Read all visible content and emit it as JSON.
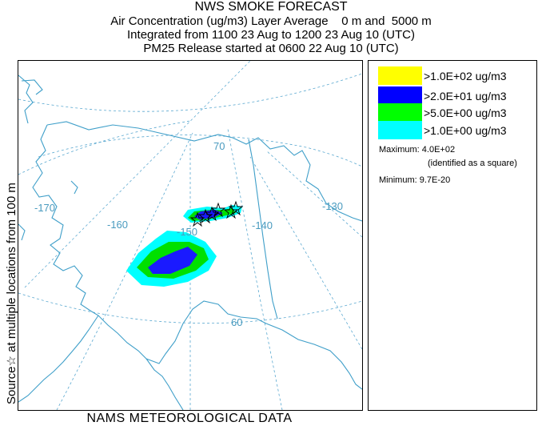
{
  "title": {
    "line1": "NWS SMOKE FORECAST",
    "line2": "Air Concentration (ug/m3) Layer Average    0 m and  5000 m",
    "line3": "Integrated from 1100 23 Aug to 1200 23 Aug 10 (UTC)",
    "line4": "PM25 Release started at 0600 22 Aug 10 (UTC)"
  },
  "side_label": "Source☆   at multiple locations   from  100 m",
  "footer": "NAMS METEOROLOGICAL DATA",
  "map": {
    "grid_labels": {
      "lon_170": "-170",
      "lon_160": "-160",
      "lon_150": "-150",
      "lon_140": "-140",
      "lon_130": "-130",
      "lat_70": "70",
      "lat_60": "60"
    },
    "colors": {
      "coast": "#3f9fc9",
      "graticule": "#5aa8d0",
      "level_1": "#00ffff",
      "level_5": "#00e000",
      "level_20": "#0000ff",
      "level_100": "#ffff00"
    }
  },
  "legend": {
    "items": [
      {
        "label": ">1.0E+02 ug/m3",
        "color": "#ffff00"
      },
      {
        "label": ">2.0E+01 ug/m3",
        "color": "#0000ff"
      },
      {
        "label": ">5.0E+00 ug/m3",
        "color": "#00ff00"
      },
      {
        "label": ">1.0E+00 ug/m3",
        "color": "#00ffff"
      }
    ],
    "maximum_label": "Maximum: 4.0E+02",
    "maximum_note": "(identified as a square)",
    "minimum_label": "Minimum: 9.7E-20"
  }
}
